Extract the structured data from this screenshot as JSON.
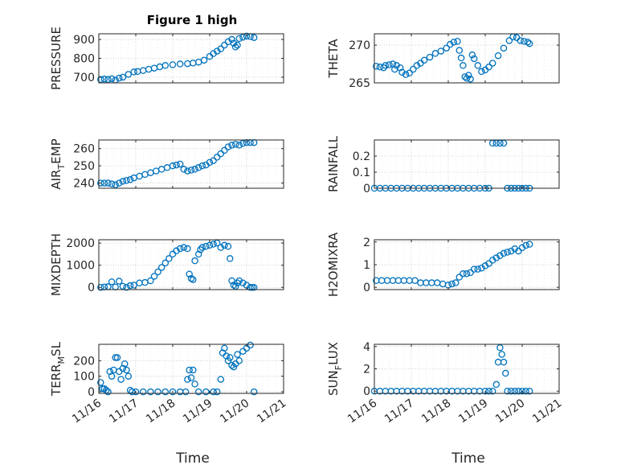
{
  "figure": {
    "title": "Figure 1 high",
    "xlabel": "Time",
    "x_tick_labels": [
      "11/16",
      "11/17",
      "11/18",
      "11/19",
      "11/20",
      "11/21"
    ],
    "marker_color": "#0072BD"
  },
  "chart_data": [
    {
      "type": "scatter",
      "ylabel": "PRESSURE",
      "ylabel_sub": "",
      "xlim": [
        0,
        5
      ],
      "ylim": [
        670,
        930
      ],
      "yticks": [
        700,
        800,
        900
      ],
      "ytick_labels": [
        "700",
        "800",
        "900"
      ],
      "x": [
        0.05,
        0.15,
        0.25,
        0.35,
        0.45,
        0.55,
        0.65,
        0.8,
        0.95,
        1.05,
        1.2,
        1.35,
        1.5,
        1.65,
        1.8,
        2.0,
        2.2,
        2.4,
        2.55,
        2.7,
        2.85,
        3.0,
        3.1,
        3.2,
        3.3,
        3.4,
        3.5,
        3.6,
        3.65,
        3.7,
        3.75,
        3.8,
        3.9,
        4.0,
        4.1,
        4.2
      ],
      "y": [
        688,
        690,
        688,
        692,
        685,
        695,
        700,
        715,
        728,
        730,
        735,
        742,
        748,
        755,
        762,
        766,
        770,
        772,
        775,
        780,
        790,
        810,
        825,
        838,
        850,
        870,
        888,
        900,
        880,
        860,
        870,
        905,
        912,
        918,
        915,
        910
      ]
    },
    {
      "type": "scatter",
      "ylabel": "THETA",
      "ylabel_sub": "",
      "xlim": [
        0,
        5
      ],
      "ylim": [
        265,
        271.5
      ],
      "yticks": [
        265,
        270
      ],
      "ytick_labels": [
        "265",
        "270"
      ],
      "x": [
        0.05,
        0.15,
        0.25,
        0.3,
        0.4,
        0.5,
        0.55,
        0.6,
        0.7,
        0.75,
        0.85,
        0.95,
        1.05,
        1.15,
        1.25,
        1.35,
        1.5,
        1.65,
        1.8,
        1.95,
        2.05,
        2.15,
        2.25,
        2.3,
        2.35,
        2.4,
        2.45,
        2.5,
        2.55,
        2.6,
        2.65,
        2.7,
        2.8,
        2.9,
        3.0,
        3.1,
        3.2,
        3.35,
        3.5,
        3.65,
        3.75,
        3.85,
        3.95,
        4.05,
        4.15,
        4.2
      ],
      "y": [
        267.2,
        267.1,
        267.0,
        267.3,
        267.4,
        267.5,
        266.8,
        267.3,
        267.0,
        266.4,
        266.1,
        266.3,
        266.8,
        267.3,
        267.6,
        268.0,
        268.4,
        268.9,
        269.2,
        269.6,
        270.1,
        270.4,
        270.5,
        269.3,
        268.3,
        267.3,
        265.8,
        265.6,
        266.0,
        265.5,
        268.7,
        268.2,
        267.3,
        266.5,
        266.7,
        267.1,
        267.6,
        268.6,
        269.6,
        270.6,
        271.1,
        271.0,
        270.6,
        270.5,
        270.4,
        270.2
      ]
    },
    {
      "type": "scatter",
      "ylabel": "AIR",
      "ylabel_sub": "T",
      "ylabel_rest": "EMP",
      "xlim": [
        0,
        5
      ],
      "ylim": [
        237,
        265
      ],
      "yticks": [
        240,
        250,
        260
      ],
      "ytick_labels": [
        "240",
        "250",
        "260"
      ],
      "x": [
        0.05,
        0.15,
        0.25,
        0.35,
        0.45,
        0.55,
        0.65,
        0.75,
        0.85,
        0.95,
        1.1,
        1.25,
        1.4,
        1.55,
        1.7,
        1.85,
        2.0,
        2.1,
        2.2,
        2.3,
        2.4,
        2.5,
        2.6,
        2.7,
        2.8,
        2.9,
        3.0,
        3.1,
        3.2,
        3.3,
        3.4,
        3.5,
        3.6,
        3.7,
        3.8,
        3.9,
        4.0,
        4.1,
        4.2
      ],
      "y": [
        240,
        240,
        240,
        239.5,
        239,
        240,
        241,
        241.5,
        242,
        243,
        244,
        245,
        246,
        247,
        248,
        249,
        250,
        250.5,
        251,
        248,
        247,
        247.5,
        248,
        249,
        250,
        250.5,
        252,
        253,
        255,
        257,
        259,
        261,
        262,
        262.5,
        262,
        263,
        263.5,
        263.5,
        263.5
      ]
    },
    {
      "type": "scatter",
      "ylabel": "RAINFALL",
      "ylabel_sub": "",
      "xlim": [
        0,
        5
      ],
      "ylim": [
        0,
        0.3
      ],
      "yticks": [
        0,
        0.1,
        0.2
      ],
      "ytick_labels": [
        "0",
        "0.1",
        "0.2"
      ],
      "x": [
        0.0,
        0.15,
        0.3,
        0.45,
        0.6,
        0.75,
        0.9,
        1.05,
        1.2,
        1.35,
        1.5,
        1.65,
        1.8,
        1.95,
        2.1,
        2.25,
        2.4,
        2.55,
        2.7,
        2.85,
        3.0,
        3.1,
        3.2,
        3.3,
        3.4,
        3.5,
        3.6,
        3.7,
        3.8,
        3.9,
        4.0,
        4.1,
        4.2
      ],
      "y": [
        0,
        0,
        0,
        0,
        0,
        0,
        0,
        0,
        0,
        0,
        0,
        0,
        0,
        0,
        0,
        0,
        0,
        0,
        0,
        0,
        0,
        0,
        0.28,
        0.28,
        0.28,
        0.28,
        0,
        0,
        0,
        0,
        0,
        0,
        0
      ]
    },
    {
      "type": "scatter",
      "ylabel": "MIXDEPTH",
      "ylabel_sub": "",
      "xlim": [
        0,
        5
      ],
      "ylim": [
        -100,
        2150
      ],
      "yticks": [
        0,
        1000,
        2000
      ],
      "ytick_labels": [
        "0",
        "1000",
        "2000"
      ],
      "x": [
        0.05,
        0.15,
        0.25,
        0.35,
        0.45,
        0.55,
        0.65,
        0.75,
        0.85,
        0.95,
        1.1,
        1.25,
        1.4,
        1.5,
        1.6,
        1.7,
        1.8,
        1.9,
        2.0,
        2.1,
        2.2,
        2.3,
        2.4,
        2.45,
        2.5,
        2.55,
        2.6,
        2.7,
        2.75,
        2.8,
        2.9,
        3.0,
        3.1,
        3.2,
        3.3,
        3.4,
        3.5,
        3.55,
        3.6,
        3.65,
        3.7,
        3.75,
        3.8,
        3.9,
        4.0,
        4.1,
        4.15,
        4.2
      ],
      "y": [
        0,
        20,
        30,
        250,
        20,
        280,
        50,
        0,
        80,
        100,
        200,
        220,
        300,
        500,
        700,
        900,
        1100,
        1300,
        1500,
        1650,
        1750,
        1800,
        1750,
        600,
        400,
        350,
        1200,
        1500,
        1700,
        1800,
        1850,
        1900,
        1950,
        2000,
        1800,
        1900,
        1850,
        1300,
        300,
        100,
        50,
        200,
        300,
        200,
        100,
        0,
        0,
        0
      ]
    },
    {
      "type": "scatter",
      "ylabel": "H2OMIXRA",
      "ylabel_sub": "",
      "xlim": [
        0,
        5
      ],
      "ylim": [
        -0.1,
        2.1
      ],
      "yticks": [
        0,
        1,
        2
      ],
      "ytick_labels": [
        "0",
        "1",
        "2"
      ],
      "x": [
        0.05,
        0.2,
        0.35,
        0.5,
        0.65,
        0.8,
        0.95,
        1.1,
        1.25,
        1.4,
        1.55,
        1.7,
        1.85,
        2.0,
        2.1,
        2.2,
        2.3,
        2.4,
        2.5,
        2.6,
        2.7,
        2.8,
        2.9,
        3.0,
        3.1,
        3.2,
        3.3,
        3.4,
        3.5,
        3.6,
        3.7,
        3.8,
        3.9,
        4.0,
        4.1,
        4.2
      ],
      "y": [
        0.3,
        0.3,
        0.3,
        0.3,
        0.3,
        0.3,
        0.3,
        0.3,
        0.2,
        0.2,
        0.2,
        0.2,
        0.15,
        0.1,
        0.15,
        0.2,
        0.45,
        0.6,
        0.6,
        0.65,
        0.8,
        0.8,
        0.85,
        0.95,
        1.05,
        1.2,
        1.3,
        1.4,
        1.5,
        1.55,
        1.6,
        1.7,
        1.6,
        1.75,
        1.85,
        1.9
      ]
    },
    {
      "type": "scatter",
      "ylabel": "TERR",
      "ylabel_sub": "M",
      "ylabel_rest": "SL",
      "xlim": [
        0,
        5
      ],
      "ylim": [
        -10,
        305
      ],
      "yticks": [
        0,
        100,
        200
      ],
      "ytick_labels": [
        "0",
        "100",
        "200"
      ],
      "x": [
        0.05,
        0.1,
        0.15,
        0.2,
        0.25,
        0.3,
        0.35,
        0.4,
        0.45,
        0.5,
        0.55,
        0.6,
        0.65,
        0.7,
        0.75,
        0.8,
        0.85,
        0.9,
        1.0,
        1.2,
        1.4,
        1.6,
        1.8,
        2.0,
        2.2,
        2.35,
        2.4,
        2.45,
        2.5,
        2.55,
        2.6,
        2.7,
        2.9,
        3.1,
        3.2,
        3.3,
        3.35,
        3.4,
        3.45,
        3.5,
        3.55,
        3.6,
        3.65,
        3.7,
        3.75,
        3.8,
        3.9,
        4.0,
        4.1,
        4.2
      ],
      "y": [
        60,
        20,
        20,
        10,
        0,
        130,
        100,
        140,
        220,
        220,
        130,
        80,
        150,
        180,
        140,
        100,
        10,
        0,
        0,
        0,
        0,
        0,
        0,
        0,
        0,
        0,
        80,
        140,
        90,
        140,
        50,
        0,
        0,
        0,
        0,
        80,
        250,
        280,
        230,
        200,
        220,
        170,
        160,
        180,
        240,
        200,
        260,
        280,
        300,
        0
      ]
    },
    {
      "type": "scatter",
      "ylabel": "SUN",
      "ylabel_sub": "F",
      "ylabel_rest": "LUX",
      "xlim": [
        0,
        5
      ],
      "ylim": [
        -0.2,
        4.2
      ],
      "yticks": [
        0,
        2,
        4
      ],
      "ytick_labels": [
        "0",
        "2",
        "4"
      ],
      "x": [
        0.0,
        0.15,
        0.3,
        0.45,
        0.6,
        0.75,
        0.9,
        1.05,
        1.2,
        1.35,
        1.5,
        1.65,
        1.8,
        1.95,
        2.1,
        2.25,
        2.4,
        2.55,
        2.7,
        2.85,
        3.0,
        3.1,
        3.2,
        3.3,
        3.35,
        3.4,
        3.45,
        3.5,
        3.55,
        3.6,
        3.7,
        3.8,
        3.9,
        4.0,
        4.1,
        4.2
      ],
      "y": [
        0,
        0,
        0,
        0,
        0,
        0,
        0,
        0,
        0,
        0,
        0,
        0,
        0,
        0,
        0,
        0,
        0,
        0,
        0,
        0,
        0,
        0,
        0,
        0.6,
        2.6,
        3.9,
        3.3,
        2.6,
        1.6,
        0,
        0,
        0,
        0,
        0,
        0,
        0
      ]
    }
  ]
}
